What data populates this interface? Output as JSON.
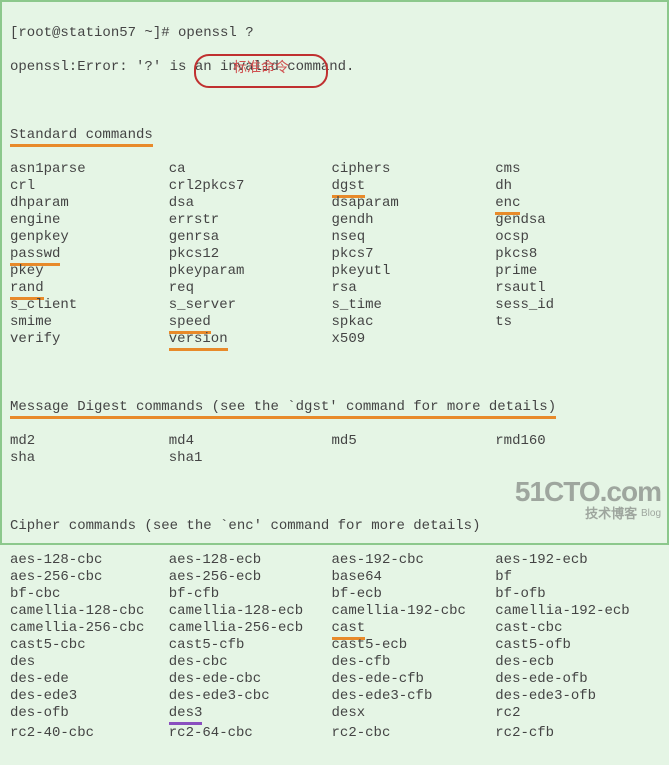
{
  "prompt": "[root@station57 ~]# openssl ?",
  "error": "openssl:Error: '?' is an invalid command.",
  "bubble": "标准命令",
  "sections": {
    "standard": {
      "header": "Standard commands",
      "rows": [
        {
          "c0": "asn1parse",
          "c1": "ca",
          "c2": "ciphers",
          "c3": "cms"
        },
        {
          "c0": "crl",
          "c1": "crl2pkcs7",
          "c2": "dgst",
          "c3": "dh",
          "u": [
            "c2"
          ]
        },
        {
          "c0": "dhparam",
          "c1": "dsa",
          "c2": "dsaparam",
          "c3": "enc",
          "u": [
            "c3"
          ]
        },
        {
          "c0": "engine",
          "c1": "errstr",
          "c2": "gendh",
          "c3": "gendsa"
        },
        {
          "c0": "genpkey",
          "c1": "genrsa",
          "c2": "nseq",
          "c3": "ocsp"
        },
        {
          "c0": "passwd",
          "c1": "pkcs12",
          "c2": "pkcs7",
          "c3": "pkcs8",
          "u": [
            "c0"
          ]
        },
        {
          "c0": "pkey",
          "c1": "pkeyparam",
          "c2": "pkeyutl",
          "c3": "prime"
        },
        {
          "c0": "rand",
          "c1": "req",
          "c2": "rsa",
          "c3": "rsautl",
          "u": [
            "c0"
          ]
        },
        {
          "c0": "s_client",
          "c1": "s_server",
          "c2": "s_time",
          "c3": "sess_id"
        },
        {
          "c0": "smime",
          "c1": "speed",
          "c2": "spkac",
          "c3": "ts",
          "u": [
            "c1"
          ]
        },
        {
          "c0": "verify",
          "c1": "version",
          "c2": "x509",
          "c3": "",
          "u": [
            "c1"
          ]
        }
      ]
    },
    "digest": {
      "header": "Message Digest commands (see the `dgst' command for more details)",
      "rows": [
        {
          "c0": "md2",
          "c1": "md4",
          "c2": "md5",
          "c3": "rmd160"
        },
        {
          "c0": "sha",
          "c1": "sha1",
          "c2": "",
          "c3": ""
        }
      ]
    },
    "cipher": {
      "header": "Cipher commands (see the `enc' command for more details)",
      "rows": [
        {
          "c0": "aes-128-cbc",
          "c1": "aes-128-ecb",
          "c2": "aes-192-cbc",
          "c3": "aes-192-ecb"
        },
        {
          "c0": "aes-256-cbc",
          "c1": "aes-256-ecb",
          "c2": "base64",
          "c3": "bf"
        },
        {
          "c0": "bf-cbc",
          "c1": "bf-cfb",
          "c2": "bf-ecb",
          "c3": "bf-ofb"
        },
        {
          "c0": "camellia-128-cbc",
          "c1": "camellia-128-ecb",
          "c2": "camellia-192-cbc",
          "c3": "camellia-192-ecb"
        },
        {
          "c0": "camellia-256-cbc",
          "c1": "camellia-256-ecb",
          "c2": "cast",
          "c3": "cast-cbc",
          "u": [
            "c2"
          ]
        },
        {
          "c0": "cast5-cbc",
          "c1": "cast5-cfb",
          "c2": "cast5-ecb",
          "c3": "cast5-ofb"
        },
        {
          "c0": "des",
          "c1": "des-cbc",
          "c2": "des-cfb",
          "c3": "des-ecb"
        },
        {
          "c0": "des-ede",
          "c1": "des-ede-cbc",
          "c2": "des-ede-cfb",
          "c3": "des-ede-ofb"
        },
        {
          "c0": "des-ede3",
          "c1": "des-ede3-cbc",
          "c2": "des-ede3-cfb",
          "c3": "des-ede3-ofb"
        },
        {
          "c0": "des-ofb",
          "c1": "des3",
          "c2": "desx",
          "c3": "rc2",
          "p": [
            "c1"
          ]
        },
        {
          "c0": "rc2-40-cbc",
          "c1": "rc2-64-cbc",
          "c2": "rc2-cbc",
          "c3": "rc2-cfb"
        }
      ]
    }
  },
  "watermark": {
    "big": "51CTO.com",
    "small": "技术博客",
    "blog": "Blog"
  },
  "colors": {
    "bg": "#e5f5e5",
    "text": "#444",
    "orange": "#e88a2a",
    "purple": "#8a4fbf",
    "bubble": "#c03030"
  }
}
